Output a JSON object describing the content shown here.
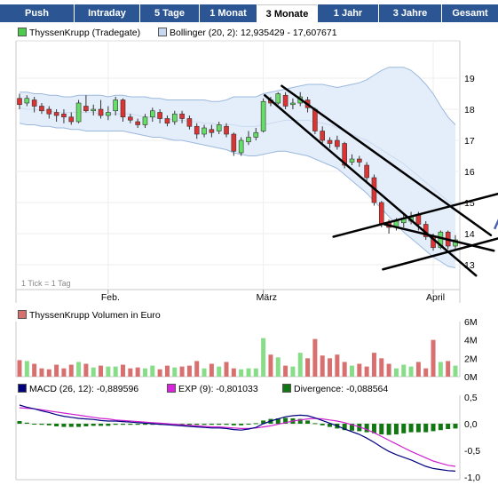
{
  "tabs": [
    {
      "label": "Push",
      "active": false
    },
    {
      "label": "Intraday",
      "active": false
    },
    {
      "label": "5 Tage",
      "active": false
    },
    {
      "label": "1 Monat",
      "active": false
    },
    {
      "label": "3 Monate",
      "active": true
    },
    {
      "label": "1 Jahr",
      "active": false
    },
    {
      "label": "3 Jahre",
      "active": false
    },
    {
      "label": "Gesamt",
      "active": false
    }
  ],
  "legend": {
    "price_series": "ThyssenKrupp (Tradegate)",
    "bollinger": "Bollinger (20, 2): 12,935429 - 17,607671",
    "volume": "ThyssenKrupp Volumen in Euro",
    "macd": "MACD (26, 12): -0,889596",
    "exp": "EXP (9): -0,801033",
    "divergence": "Divergence: -0,088564"
  },
  "tick_note": "1 Tick = 1 Tag",
  "colors": {
    "tab_bg": "#2b5593",
    "up": "#66dd66",
    "down": "#dd3333",
    "band_fill": "#e4eefb",
    "band_line": "#9bb8dc",
    "trendline": "#000000",
    "arrow": "#5060b0",
    "vol_up": "#88dd88",
    "vol_down": "#d87070",
    "macd_line": "#000080",
    "exp_line": "#d020d0",
    "divergence": "#117711",
    "swatch_price": "#4ccc4c",
    "swatch_bollinger": "#c8d8f0",
    "swatch_volume": "#d87070",
    "swatch_macd": "#000080",
    "swatch_exp": "#dd22dd",
    "swatch_div": "#117711"
  },
  "chart_data": [
    {
      "type": "candlestick",
      "title": "ThyssenKrupp (Tradegate)",
      "ylim": [
        12.4,
        19.5
      ],
      "y_ticks": [
        "19",
        "18",
        "17",
        "16",
        "15",
        "14",
        "13"
      ],
      "x_labels": [
        {
          "label": "Feb.",
          "index": 12
        },
        {
          "label": "März",
          "index": 33
        },
        {
          "label": "April",
          "index": 56
        }
      ],
      "candles": [
        {
          "o": 18.35,
          "c": 18.15,
          "h": 18.5,
          "l": 18.0
        },
        {
          "o": 18.2,
          "c": 18.35,
          "h": 18.45,
          "l": 18.1
        },
        {
          "o": 18.3,
          "c": 18.1,
          "h": 18.4,
          "l": 17.9
        },
        {
          "o": 18.1,
          "c": 17.95,
          "h": 18.2,
          "l": 17.85
        },
        {
          "o": 18.0,
          "c": 17.85,
          "h": 18.1,
          "l": 17.7
        },
        {
          "o": 17.9,
          "c": 17.8,
          "h": 18.0,
          "l": 17.6
        },
        {
          "o": 17.85,
          "c": 17.75,
          "h": 18.0,
          "l": 17.55
        },
        {
          "o": 17.75,
          "c": 17.6,
          "h": 17.9,
          "l": 17.5
        },
        {
          "o": 17.6,
          "c": 18.2,
          "h": 18.3,
          "l": 17.55
        },
        {
          "o": 18.1,
          "c": 17.95,
          "h": 18.45,
          "l": 17.9
        },
        {
          "o": 17.95,
          "c": 18.0,
          "h": 18.15,
          "l": 17.8
        },
        {
          "o": 18.0,
          "c": 17.8,
          "h": 18.3,
          "l": 17.7
        },
        {
          "o": 17.8,
          "c": 17.9,
          "h": 18.1,
          "l": 17.65
        },
        {
          "o": 17.95,
          "c": 18.3,
          "h": 18.4,
          "l": 17.8
        },
        {
          "o": 18.3,
          "c": 17.75,
          "h": 18.35,
          "l": 17.6
        },
        {
          "o": 17.75,
          "c": 17.65,
          "h": 17.85,
          "l": 17.55
        },
        {
          "o": 17.6,
          "c": 17.5,
          "h": 17.7,
          "l": 17.4
        },
        {
          "o": 17.5,
          "c": 17.75,
          "h": 17.85,
          "l": 17.4
        },
        {
          "o": 17.75,
          "c": 17.95,
          "h": 18.05,
          "l": 17.6
        },
        {
          "o": 17.9,
          "c": 17.7,
          "h": 18.0,
          "l": 17.55
        },
        {
          "o": 17.7,
          "c": 17.55,
          "h": 17.8,
          "l": 17.45
        },
        {
          "o": 17.6,
          "c": 17.85,
          "h": 17.95,
          "l": 17.5
        },
        {
          "o": 17.85,
          "c": 17.7,
          "h": 17.95,
          "l": 17.55
        },
        {
          "o": 17.7,
          "c": 17.45,
          "h": 17.8,
          "l": 17.35
        },
        {
          "o": 17.45,
          "c": 17.2,
          "h": 17.55,
          "l": 17.05
        },
        {
          "o": 17.2,
          "c": 17.4,
          "h": 17.5,
          "l": 17.1
        },
        {
          "o": 17.35,
          "c": 17.25,
          "h": 17.5,
          "l": 17.1
        },
        {
          "o": 17.3,
          "c": 17.5,
          "h": 17.6,
          "l": 17.2
        },
        {
          "o": 17.45,
          "c": 17.2,
          "h": 17.55,
          "l": 17.1
        },
        {
          "o": 17.2,
          "c": 16.65,
          "h": 17.25,
          "l": 16.5
        },
        {
          "o": 16.6,
          "c": 17.0,
          "h": 17.1,
          "l": 16.5
        },
        {
          "o": 16.95,
          "c": 17.1,
          "h": 17.3,
          "l": 16.85
        },
        {
          "o": 17.1,
          "c": 17.25,
          "h": 17.4,
          "l": 17.0
        },
        {
          "o": 17.3,
          "c": 18.25,
          "h": 18.35,
          "l": 17.25
        },
        {
          "o": 18.3,
          "c": 18.2,
          "h": 18.4,
          "l": 18.1
        },
        {
          "o": 18.2,
          "c": 18.5,
          "h": 18.55,
          "l": 18.15
        },
        {
          "o": 18.45,
          "c": 18.1,
          "h": 18.55,
          "l": 18.0
        },
        {
          "o": 18.15,
          "c": 18.2,
          "h": 18.35,
          "l": 18.0
        },
        {
          "o": 18.2,
          "c": 18.4,
          "h": 18.55,
          "l": 18.1
        },
        {
          "o": 18.3,
          "c": 18.05,
          "h": 18.4,
          "l": 17.9
        },
        {
          "o": 18.0,
          "c": 17.3,
          "h": 18.05,
          "l": 17.2
        },
        {
          "o": 17.3,
          "c": 17.0,
          "h": 17.45,
          "l": 16.9
        },
        {
          "o": 17.0,
          "c": 16.9,
          "h": 17.1,
          "l": 16.75
        },
        {
          "o": 17.0,
          "c": 16.8,
          "h": 17.15,
          "l": 16.7
        },
        {
          "o": 16.9,
          "c": 16.2,
          "h": 16.95,
          "l": 16.1
        },
        {
          "o": 16.3,
          "c": 16.4,
          "h": 16.55,
          "l": 16.2
        },
        {
          "o": 16.4,
          "c": 16.3,
          "h": 16.5,
          "l": 16.15
        },
        {
          "o": 16.2,
          "c": 15.8,
          "h": 16.3,
          "l": 15.7
        },
        {
          "o": 15.8,
          "c": 15.0,
          "h": 15.9,
          "l": 14.9
        },
        {
          "o": 15.0,
          "c": 14.3,
          "h": 15.05,
          "l": 14.2
        },
        {
          "o": 14.35,
          "c": 14.2,
          "h": 14.45,
          "l": 14.0
        },
        {
          "o": 14.2,
          "c": 14.4,
          "h": 14.5,
          "l": 14.1
        },
        {
          "o": 14.35,
          "c": 14.5,
          "h": 14.6,
          "l": 14.2
        },
        {
          "o": 14.4,
          "c": 14.55,
          "h": 14.7,
          "l": 14.3
        },
        {
          "o": 14.6,
          "c": 14.3,
          "h": 14.7,
          "l": 14.1
        },
        {
          "o": 14.3,
          "c": 13.9,
          "h": 14.4,
          "l": 13.8
        },
        {
          "o": 13.9,
          "c": 13.55,
          "h": 14.0,
          "l": 13.45
        },
        {
          "o": 13.55,
          "c": 14.05,
          "h": 14.1,
          "l": 13.5
        },
        {
          "o": 14.05,
          "c": 13.6,
          "h": 14.1,
          "l": 13.5
        },
        {
          "o": 13.6,
          "c": 13.8,
          "h": 13.95,
          "l": 13.5
        }
      ],
      "bollinger_upper": [
        18.55,
        18.55,
        18.5,
        18.5,
        18.45,
        18.45,
        18.4,
        18.4,
        18.45,
        18.45,
        18.45,
        18.45,
        18.4,
        18.45,
        18.45,
        18.4,
        18.4,
        18.4,
        18.35,
        18.35,
        18.3,
        18.3,
        18.3,
        18.3,
        18.3,
        18.3,
        18.25,
        18.25,
        18.3,
        18.4,
        18.4,
        18.4,
        18.4,
        18.5,
        18.55,
        18.6,
        18.65,
        18.7,
        18.75,
        18.8,
        18.8,
        18.8,
        18.75,
        18.7,
        18.75,
        18.8,
        18.85,
        18.95,
        19.1,
        19.25,
        19.35,
        19.35,
        19.35,
        19.25,
        19.05,
        18.8,
        18.5,
        18.1,
        17.75,
        17.5
      ],
      "bollinger_lower": [
        17.55,
        17.5,
        17.5,
        17.45,
        17.45,
        17.4,
        17.4,
        17.35,
        17.35,
        17.3,
        17.3,
        17.3,
        17.3,
        17.3,
        17.3,
        17.25,
        17.2,
        17.15,
        17.1,
        17.1,
        17.05,
        17.0,
        17.0,
        16.95,
        16.9,
        16.85,
        16.8,
        16.75,
        16.7,
        16.6,
        16.55,
        16.5,
        16.5,
        16.55,
        16.6,
        16.65,
        16.65,
        16.6,
        16.55,
        16.5,
        16.4,
        16.3,
        16.2,
        16.1,
        15.9,
        15.7,
        15.5,
        15.3,
        15.05,
        14.8,
        14.55,
        14.3,
        14.05,
        13.85,
        13.65,
        13.45,
        13.25,
        13.1,
        12.95,
        12.9
      ],
      "bollinger_mid": [
        18.05,
        18.0,
        18.0,
        17.95,
        17.95,
        17.9,
        17.9,
        17.9,
        17.9,
        17.9,
        17.9,
        17.85,
        17.85,
        17.85,
        17.85,
        17.85,
        17.8,
        17.75,
        17.75,
        17.7,
        17.7,
        17.65,
        17.65,
        17.6,
        17.6,
        17.55,
        17.55,
        17.5,
        17.5,
        17.5,
        17.45,
        17.45,
        17.45,
        17.5,
        17.55,
        17.6,
        17.65,
        17.65,
        17.65,
        17.65,
        17.6,
        17.55,
        17.5,
        17.4,
        17.3,
        17.2,
        17.1,
        17.0,
        16.85,
        16.7,
        16.55,
        16.4,
        16.25,
        16.05,
        15.85,
        15.65,
        15.45,
        15.25,
        15.05,
        14.9
      ],
      "annotation_lines": [
        {
          "from": [
            35.5,
            18.75
          ],
          "to": [
            63.8,
            13.95
          ]
        },
        {
          "from": [
            33.2,
            18.45
          ],
          "to": [
            61.8,
            12.65
          ]
        },
        {
          "from": [
            49.4,
            14.3
          ],
          "to": [
            64.2,
            13.45
          ]
        },
        {
          "from": [
            42.5,
            13.9
          ],
          "to": [
            67.5,
            15.45
          ]
        },
        {
          "from": [
            49.2,
            12.85
          ],
          "to": [
            68.0,
            14.05
          ]
        }
      ],
      "annotation_arrows": [
        {
          "points": [
            [
              64.3,
              14.15
            ],
            [
              66.6,
              15.35
            ],
            [
              68.3,
              14.95
            ]
          ]
        },
        {
          "points": [
            [
              64.9,
              13.75
            ],
            [
              68.3,
              13.1
            ]
          ]
        }
      ]
    },
    {
      "type": "bar",
      "title": "ThyssenKrupp Volumen in Euro",
      "ylim": [
        0,
        6
      ],
      "y_ticks": [
        "6M",
        "4M",
        "2M",
        "0M"
      ],
      "values": [
        1.8,
        1.7,
        1.4,
        0.9,
        0.8,
        1.3,
        0.9,
        1.3,
        1.6,
        1.4,
        1.0,
        1.2,
        1.1,
        1.1,
        1.3,
        0.9,
        1.0,
        0.9,
        1.2,
        0.8,
        1.2,
        1.0,
        1.1,
        1.2,
        1.7,
        0.9,
        1.4,
        1.1,
        1.6,
        0.9,
        0.8,
        0.9,
        0.9,
        4.2,
        2.4,
        2.1,
        1.2,
        1.1,
        2.6,
        2.0,
        4.1,
        2.3,
        2.0,
        2.4,
        1.6,
        1.2,
        1.4,
        1.1,
        2.6,
        2.0,
        1.4,
        0.9,
        1.3,
        1.1,
        1.6,
        0.9,
        4.0,
        1.6,
        1.7,
        1.2
      ],
      "up_flags": [
        0,
        1,
        0,
        0,
        0,
        0,
        0,
        0,
        1,
        0,
        1,
        0,
        1,
        1,
        0,
        0,
        0,
        1,
        1,
        0,
        0,
        1,
        0,
        0,
        0,
        1,
        0,
        1,
        0,
        0,
        1,
        1,
        1,
        1,
        0,
        1,
        0,
        1,
        1,
        0,
        0,
        0,
        0,
        0,
        0,
        1,
        0,
        0,
        0,
        0,
        0,
        1,
        1,
        1,
        0,
        0,
        0,
        1,
        0,
        1
      ]
    },
    {
      "type": "line",
      "title": "MACD",
      "ylim": [
        -1.05,
        0.55
      ],
      "y_ticks": [
        "0,5",
        "0,0",
        "-0,5",
        "-1,0"
      ],
      "series": [
        {
          "name": "MACD (26, 12): -0,889596",
          "values": [
            0.35,
            0.31,
            0.28,
            0.24,
            0.21,
            0.17,
            0.14,
            0.12,
            0.1,
            0.09,
            0.08,
            0.06,
            0.05,
            0.05,
            0.04,
            0.03,
            0.02,
            0.01,
            0.0,
            -0.01,
            -0.02,
            -0.03,
            -0.04,
            -0.05,
            -0.06,
            -0.07,
            -0.08,
            -0.08,
            -0.09,
            -0.11,
            -0.12,
            -0.1,
            -0.07,
            0.0,
            0.05,
            0.09,
            0.13,
            0.15,
            0.16,
            0.15,
            0.11,
            0.06,
            0.01,
            -0.04,
            -0.1,
            -0.15,
            -0.2,
            -0.27,
            -0.35,
            -0.44,
            -0.52,
            -0.58,
            -0.63,
            -0.68,
            -0.74,
            -0.8,
            -0.84,
            -0.86,
            -0.88,
            -0.89
          ]
        },
        {
          "name": "EXP (9): -0,801033",
          "values": [
            0.3,
            0.29,
            0.28,
            0.26,
            0.24,
            0.22,
            0.2,
            0.18,
            0.16,
            0.14,
            0.12,
            0.1,
            0.09,
            0.07,
            0.06,
            0.05,
            0.04,
            0.03,
            0.02,
            0.01,
            0.0,
            -0.01,
            -0.02,
            -0.03,
            -0.04,
            -0.05,
            -0.06,
            -0.06,
            -0.07,
            -0.08,
            -0.09,
            -0.09,
            -0.08,
            -0.06,
            -0.04,
            -0.01,
            0.02,
            0.05,
            0.07,
            0.09,
            0.1,
            0.09,
            0.07,
            0.05,
            0.02,
            -0.02,
            -0.06,
            -0.11,
            -0.17,
            -0.24,
            -0.31,
            -0.38,
            -0.45,
            -0.52,
            -0.58,
            -0.64,
            -0.7,
            -0.74,
            -0.78,
            -0.8
          ]
        }
      ],
      "divergence_label": "Divergence: -0,088564"
    }
  ]
}
